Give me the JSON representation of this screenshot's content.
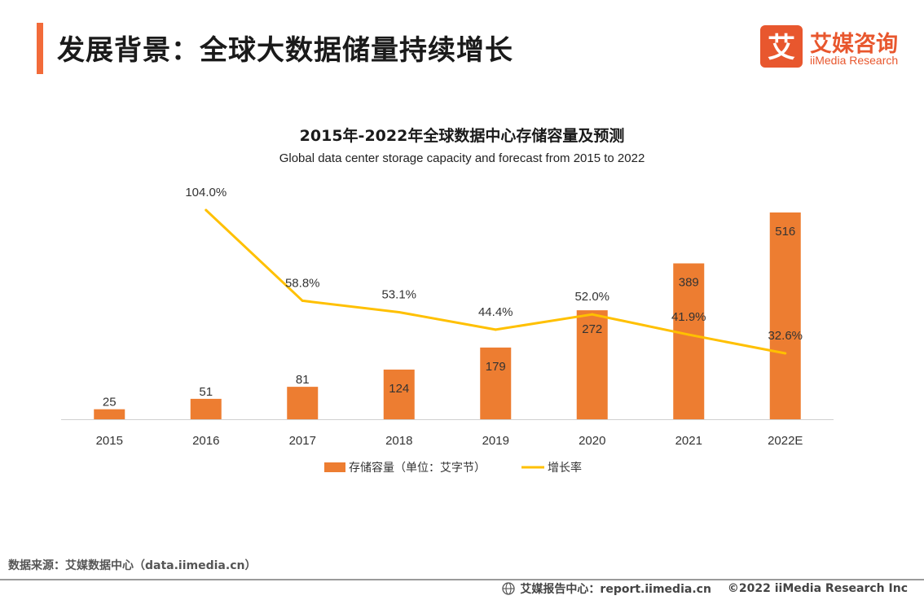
{
  "header": {
    "title": "发展背景：全球大数据储量持续增长",
    "accent_color": "#F26B3A"
  },
  "logo": {
    "cn": "艾媒咨询",
    "en": "iiMedia Research",
    "mark_char": "艾",
    "color": "#E8572E"
  },
  "chart_data": {
    "type": "bar",
    "title": "2015年-2022年全球数据中心存储容量及预测",
    "subtitle": "Global data center storage capacity and forecast from 2015 to 2022",
    "categories": [
      "2015",
      "2016",
      "2017",
      "2018",
      "2019",
      "2020",
      "2021",
      "2022E"
    ],
    "series": [
      {
        "name": "存储容量（单位：艾字节）",
        "type": "bar",
        "values": [
          25,
          51,
          81,
          124,
          179,
          272,
          389,
          516
        ],
        "labels": [
          "25",
          "51",
          "81",
          "124",
          "179",
          "272",
          "389",
          "516"
        ],
        "color": "#ED7D31"
      },
      {
        "name": "增长率",
        "type": "line",
        "values": [
          null,
          104.0,
          58.8,
          53.1,
          44.4,
          52.0,
          41.9,
          32.6
        ],
        "labels": [
          "",
          "104.0%",
          "58.8%",
          "53.1%",
          "44.4%",
          "52.0%",
          "41.9%",
          "32.6%"
        ],
        "color": "#FFC000"
      }
    ],
    "ylim": [
      0,
      520
    ],
    "y2lim": [
      0,
      105
    ],
    "grid": false,
    "legend": "bottom"
  },
  "footer": {
    "source": "数据来源：艾媒数据中心（data.iimedia.cn）",
    "report": "艾媒报告中心：report.iimedia.cn",
    "copyright": "©2022 iiMedia Research Inc"
  }
}
